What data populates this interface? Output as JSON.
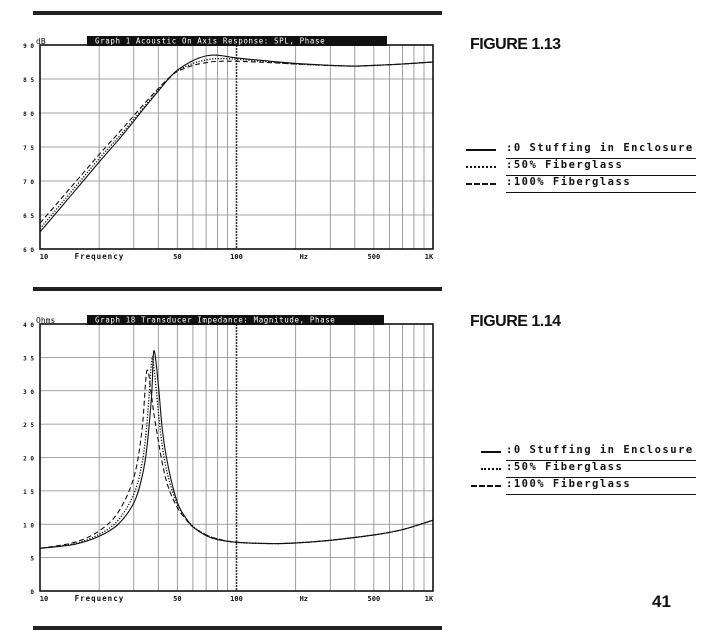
{
  "figures": [
    {
      "figure_label": "FIGURE 1.13",
      "header": "Graph 1   Acoustic On Axis Response: SPL, Phase",
      "unit_label": "dB",
      "x_title": "Frequency",
      "x_unit": "Hz",
      "y_ticks": [
        "9 0",
        "8 5",
        "8 0",
        "7 5",
        "7 0",
        "6 5",
        "6 0"
      ],
      "x_ticks": [
        "10",
        "50",
        "100",
        "500",
        "1K"
      ],
      "legend": [
        ":0 Stuffing in Enclosure",
        ":50% Fiberglass",
        ":100% Fiberglass"
      ]
    },
    {
      "figure_label": "FIGURE 1.14",
      "header": "Graph 18   Transducer Impedance: Magnitude, Phase",
      "unit_label": "Ohms",
      "x_title": "Frequency",
      "x_unit": "Hz",
      "y_ticks": [
        "4 0",
        "3 5",
        "3 0",
        "2 5",
        "2 0",
        "1 5",
        "1 0",
        "5",
        "0"
      ],
      "x_ticks": [
        "10",
        "50",
        "100",
        "500",
        "1K"
      ],
      "legend": [
        ":0 Stuffing in Enclosure",
        ":50% Fiberglass",
        ":100% Fiberglass"
      ]
    }
  ],
  "page_number": "41",
  "chart_data": [
    {
      "type": "line",
      "title": "Graph 1   Acoustic On Axis Response: SPL, Phase",
      "xlabel": "Frequency",
      "xunit": "Hz",
      "ylabel": "dB",
      "xscale": "log",
      "xlim": [
        10,
        1000
      ],
      "ylim": [
        60,
        90
      ],
      "x": [
        10,
        15,
        20,
        25,
        30,
        35,
        40,
        45,
        50,
        60,
        70,
        80,
        100,
        150,
        200,
        300,
        400,
        500,
        700,
        1000
      ],
      "series": [
        {
          "name": ":0 Stuffing in Enclosure",
          "style": "solid",
          "values": [
            62.5,
            68.5,
            72.8,
            76.0,
            78.8,
            81.2,
            83.2,
            85.0,
            86.3,
            87.7,
            88.4,
            88.5,
            88.1,
            87.6,
            87.3,
            87.0,
            86.9,
            87.0,
            87.2,
            87.5
          ]
        },
        {
          "name": ":50% Fiberglass",
          "style": "dotted",
          "values": [
            63.0,
            69.0,
            73.3,
            76.4,
            79.1,
            81.4,
            83.4,
            85.0,
            86.2,
            87.3,
            87.8,
            88.0,
            87.9,
            87.5,
            87.2,
            87.0,
            86.9,
            87.0,
            87.2,
            87.5
          ]
        },
        {
          "name": ":100% Fiberglass",
          "style": "dashed",
          "values": [
            63.8,
            69.7,
            73.9,
            77.0,
            79.6,
            81.8,
            83.6,
            85.1,
            86.1,
            87.0,
            87.4,
            87.6,
            87.6,
            87.4,
            87.2,
            87.0,
            86.9,
            87.0,
            87.2,
            87.5
          ]
        }
      ]
    },
    {
      "type": "line",
      "title": "Graph 18   Transducer Impedance: Magnitude, Phase",
      "xlabel": "Frequency",
      "xunit": "Hz",
      "ylabel": "Ohms",
      "xscale": "log",
      "xlim": [
        10,
        1000
      ],
      "ylim": [
        0,
        40
      ],
      "x": [
        10,
        15,
        20,
        25,
        30,
        33,
        35,
        37,
        38,
        40,
        42,
        45,
        50,
        55,
        60,
        70,
        80,
        100,
        150,
        200,
        300,
        500,
        700,
        1000
      ],
      "series": [
        {
          "name": ":0 Stuffing in Enclosure",
          "style": "solid",
          "values": [
            6.4,
            7.0,
            8.2,
            10.0,
            13.2,
            17.0,
            21.5,
            29.5,
            36.0,
            31.0,
            24.0,
            18.5,
            13.3,
            11.0,
            9.6,
            8.3,
            7.7,
            7.3,
            7.1,
            7.2,
            7.6,
            8.4,
            9.2,
            10.6
          ]
        },
        {
          "name": ":50% Fiberglass",
          "style": "dotted",
          "values": [
            6.4,
            7.1,
            8.5,
            10.6,
            14.5,
            19.0,
            25.0,
            34.5,
            33.5,
            27.0,
            21.5,
            17.0,
            13.0,
            11.0,
            9.7,
            8.4,
            7.8,
            7.3,
            7.1,
            7.2,
            7.6,
            8.4,
            9.2,
            10.6
          ]
        },
        {
          "name": ":100% Fiberglass",
          "style": "dashed",
          "values": [
            6.4,
            7.3,
            9.0,
            11.8,
            17.0,
            24.0,
            33.0,
            29.0,
            26.5,
            22.5,
            19.0,
            15.5,
            12.5,
            10.8,
            9.6,
            8.4,
            7.8,
            7.3,
            7.1,
            7.2,
            7.6,
            8.4,
            9.2,
            10.6
          ]
        }
      ]
    }
  ]
}
